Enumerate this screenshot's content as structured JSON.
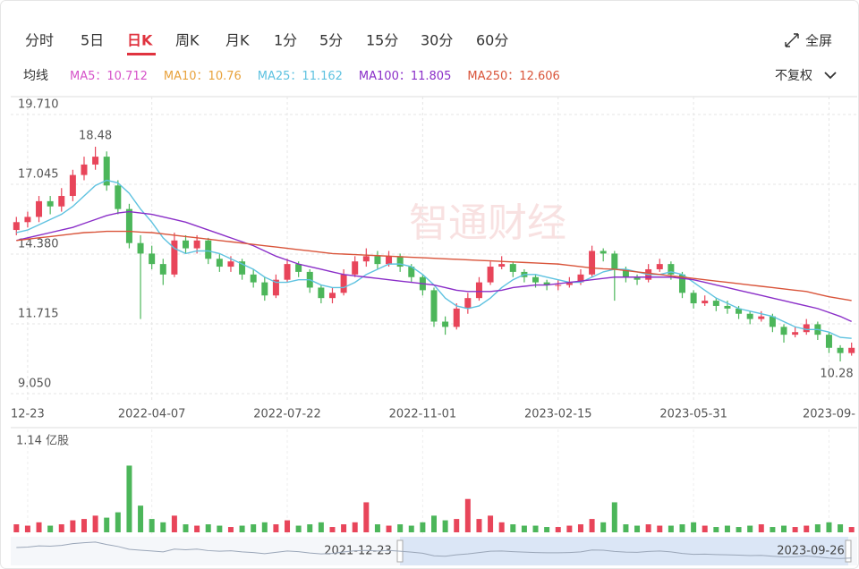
{
  "tabs": [
    "分时",
    "5日",
    "日K",
    "周K",
    "月K",
    "1分",
    "5分",
    "15分",
    "30分",
    "60分"
  ],
  "active_tab": "日K",
  "fullscreen": "全屏",
  "ma_label": "均线",
  "adjust": "不复权",
  "watermark": "智通财经",
  "chart_data": {
    "type": "candlestick",
    "up_color": "#e8455a",
    "down_color": "#4cb65a",
    "legend": [
      {
        "name": "MA5：",
        "value": 10.712,
        "color": "#d653c9"
      },
      {
        "name": "MA10：",
        "value": 10.76,
        "color": "#e8a23c"
      },
      {
        "name": "MA25：",
        "value": 11.162,
        "color": "#5ec2e0"
      },
      {
        "name": "MA100：",
        "value": 11.805,
        "color": "#8a2ec8"
      },
      {
        "name": "MA250：",
        "value": 12.606,
        "color": "#d9543a"
      }
    ],
    "ylim": [
      9.05,
      19.71
    ],
    "yticks": [
      {
        "value": 9.05,
        "label": "9.050"
      },
      11.715,
      {
        "value": 14.38,
        "label": "14.380"
      },
      17.045,
      {
        "value": 19.71,
        "label": "19.710"
      }
    ],
    "categories": [
      null,
      "12-23",
      null,
      null,
      null,
      null,
      null,
      null,
      null,
      null,
      null,
      null,
      "2022-04-07",
      null,
      null,
      null,
      null,
      null,
      null,
      null,
      null,
      null,
      null,
      null,
      "2022-07-22",
      null,
      null,
      null,
      null,
      null,
      null,
      null,
      null,
      null,
      null,
      null,
      "2022-11-01",
      null,
      null,
      null,
      null,
      null,
      null,
      null,
      null,
      null,
      null,
      null,
      "2023-02-15",
      null,
      null,
      null,
      null,
      null,
      null,
      null,
      null,
      null,
      null,
      null,
      "2023-05-31",
      null,
      null,
      null,
      null,
      null,
      null,
      null,
      null,
      null,
      null,
      null,
      "2023-09-",
      null,
      null
    ],
    "candles": {
      "open": [
        15.3,
        15.6,
        15.8,
        16.4,
        16.2,
        16.6,
        17.4,
        17.8,
        18.1,
        17.0,
        16.1,
        14.8,
        14.4,
        14.0,
        13.6,
        14.9,
        14.6,
        14.9,
        14.2,
        13.9,
        14.1,
        13.6,
        13.3,
        12.8,
        13.4,
        14.0,
        13.7,
        13.1,
        12.7,
        12.9,
        13.6,
        14.1,
        14.3,
        14.0,
        14.3,
        13.9,
        13.5,
        13.0,
        11.8,
        11.6,
        12.3,
        12.7,
        13.3,
        13.9,
        14.0,
        13.7,
        13.5,
        13.3,
        13.2,
        13.2,
        13.3,
        13.6,
        14.5,
        14.4,
        13.8,
        13.5,
        13.4,
        13.8,
        14.0,
        13.6,
        12.9,
        12.5,
        12.6,
        12.4,
        12.3,
        12.1,
        11.9,
        12.0,
        11.6,
        11.3,
        11.4,
        11.7,
        11.3,
        10.8,
        10.6
      ],
      "high": [
        15.8,
        16.0,
        16.6,
        16.6,
        16.9,
        17.6,
        18.1,
        18.48,
        18.3,
        17.2,
        16.3,
        15.1,
        14.7,
        14.2,
        15.2,
        15.1,
        15.1,
        15.0,
        14.4,
        14.3,
        14.2,
        13.8,
        13.5,
        13.6,
        14.2,
        14.1,
        13.8,
        13.2,
        13.1,
        13.8,
        14.3,
        14.6,
        14.5,
        14.5,
        14.4,
        14.0,
        13.6,
        13.1,
        12.0,
        12.5,
        12.9,
        13.5,
        14.1,
        14.3,
        14.1,
        13.8,
        13.6,
        13.4,
        13.4,
        13.5,
        13.8,
        14.7,
        14.6,
        14.5,
        13.9,
        13.6,
        14.0,
        14.2,
        14.1,
        13.7,
        13.0,
        12.8,
        12.7,
        12.6,
        12.4,
        12.2,
        12.2,
        12.1,
        11.7,
        11.6,
        11.9,
        11.8,
        11.4,
        10.9,
        11.0
      ],
      "low": [
        15.1,
        15.4,
        15.6,
        15.9,
        16.0,
        16.4,
        17.2,
        17.6,
        16.8,
        15.9,
        14.6,
        11.9,
        13.8,
        13.2,
        13.5,
        14.4,
        14.4,
        14.0,
        13.7,
        13.7,
        13.4,
        13.1,
        12.6,
        12.7,
        13.3,
        13.5,
        12.9,
        12.5,
        12.5,
        12.8,
        13.5,
        13.9,
        13.8,
        13.9,
        13.7,
        13.3,
        12.8,
        11.6,
        11.3,
        11.5,
        12.1,
        12.6,
        13.2,
        13.8,
        13.5,
        13.3,
        13.1,
        13.0,
        13.0,
        13.1,
        13.2,
        13.5,
        14.1,
        12.6,
        13.3,
        13.2,
        13.3,
        13.7,
        13.4,
        12.7,
        12.3,
        12.4,
        12.2,
        12.1,
        11.9,
        11.7,
        11.8,
        11.4,
        11.0,
        11.2,
        11.3,
        11.1,
        10.6,
        10.28,
        10.5
      ],
      "close": [
        15.6,
        15.8,
        16.4,
        16.2,
        16.6,
        17.4,
        17.8,
        18.1,
        17.0,
        16.1,
        14.8,
        14.4,
        14.0,
        13.6,
        14.9,
        14.6,
        14.9,
        14.2,
        13.9,
        14.1,
        13.6,
        13.3,
        12.8,
        13.4,
        14.0,
        13.7,
        13.1,
        12.7,
        12.9,
        13.6,
        14.1,
        14.3,
        14.0,
        14.3,
        13.9,
        13.5,
        13.0,
        11.8,
        11.6,
        12.3,
        12.7,
        13.3,
        13.9,
        14.0,
        13.7,
        13.5,
        13.3,
        13.2,
        13.2,
        13.3,
        13.6,
        14.5,
        14.4,
        13.8,
        13.5,
        13.4,
        13.8,
        14.0,
        13.6,
        12.9,
        12.5,
        12.6,
        12.4,
        12.3,
        12.1,
        11.9,
        12.0,
        11.6,
        11.3,
        11.4,
        11.7,
        11.3,
        10.8,
        10.6,
        10.8
      ]
    },
    "ma_lines": [
      {
        "name": "MA25",
        "color": "#5ec2e0",
        "values": [
          15.2,
          15.3,
          15.5,
          15.7,
          15.9,
          16.2,
          16.6,
          17.0,
          17.2,
          17.1,
          16.7,
          16.1,
          15.6,
          15.0,
          14.6,
          14.4,
          14.5,
          14.5,
          14.4,
          14.2,
          14.0,
          13.8,
          13.5,
          13.3,
          13.3,
          13.4,
          13.4,
          13.2,
          13.1,
          13.1,
          13.3,
          13.6,
          13.8,
          14.0,
          14.0,
          13.9,
          13.6,
          13.2,
          12.7,
          12.4,
          12.3,
          12.4,
          12.7,
          13.1,
          13.4,
          13.6,
          13.6,
          13.5,
          13.4,
          13.3,
          13.3,
          13.5,
          13.7,
          13.8,
          13.8,
          13.7,
          13.6,
          13.6,
          13.7,
          13.6,
          13.3,
          13.0,
          12.7,
          12.5,
          12.3,
          12.2,
          12.1,
          12.0,
          11.8,
          11.6,
          11.5,
          11.5,
          11.4,
          11.2,
          11.162
        ]
      },
      {
        "name": "MA100",
        "color": "#8a2ec8",
        "values": [
          14.9,
          15.0,
          15.1,
          15.2,
          15.3,
          15.4,
          15.55,
          15.7,
          15.85,
          15.95,
          16.0,
          15.95,
          15.9,
          15.8,
          15.7,
          15.6,
          15.45,
          15.3,
          15.15,
          15.0,
          14.85,
          14.7,
          14.5,
          14.3,
          14.15,
          14.0,
          13.9,
          13.8,
          13.7,
          13.6,
          13.55,
          13.5,
          13.45,
          13.4,
          13.35,
          13.3,
          13.25,
          13.2,
          13.1,
          13.0,
          12.95,
          12.95,
          12.95,
          13.0,
          13.1,
          13.15,
          13.2,
          13.2,
          13.25,
          13.3,
          13.35,
          13.4,
          13.45,
          13.5,
          13.5,
          13.5,
          13.5,
          13.5,
          13.5,
          13.45,
          13.4,
          13.3,
          13.2,
          13.1,
          13.0,
          12.9,
          12.8,
          12.7,
          12.6,
          12.5,
          12.4,
          12.3,
          12.15,
          12.0,
          11.805
        ]
      },
      {
        "name": "MA250",
        "color": "#d9543a",
        "values": [
          14.9,
          14.95,
          15.0,
          15.05,
          15.1,
          15.15,
          15.2,
          15.22,
          15.25,
          15.25,
          15.25,
          15.22,
          15.2,
          15.15,
          15.1,
          15.05,
          15.0,
          14.95,
          14.9,
          14.85,
          14.8,
          14.75,
          14.7,
          14.65,
          14.6,
          14.55,
          14.5,
          14.45,
          14.4,
          14.38,
          14.36,
          14.34,
          14.32,
          14.3,
          14.28,
          14.26,
          14.24,
          14.22,
          14.2,
          14.18,
          14.16,
          14.14,
          14.12,
          14.1,
          14.08,
          14.06,
          14.04,
          14.02,
          14.0,
          13.95,
          13.9,
          13.85,
          13.82,
          13.8,
          13.75,
          13.7,
          13.65,
          13.6,
          13.55,
          13.5,
          13.45,
          13.4,
          13.35,
          13.3,
          13.25,
          13.2,
          13.15,
          13.1,
          13.05,
          13.0,
          12.95,
          12.85,
          12.75,
          12.68,
          12.606
        ]
      }
    ],
    "volume_axis": {
      "value": 1.14,
      "label": "1.14 亿股"
    },
    "volume": [
      0.12,
      0.1,
      0.15,
      0.1,
      0.12,
      0.18,
      0.2,
      0.25,
      0.22,
      0.3,
      1.0,
      0.4,
      0.2,
      0.15,
      0.25,
      0.12,
      0.1,
      0.12,
      0.1,
      0.08,
      0.1,
      0.12,
      0.15,
      0.12,
      0.18,
      0.1,
      0.12,
      0.15,
      0.08,
      0.12,
      0.15,
      0.45,
      0.12,
      0.1,
      0.12,
      0.1,
      0.15,
      0.25,
      0.18,
      0.2,
      0.5,
      0.2,
      0.25,
      0.15,
      0.12,
      0.1,
      0.1,
      0.08,
      0.08,
      0.1,
      0.12,
      0.2,
      0.15,
      0.45,
      0.12,
      0.1,
      0.12,
      0.1,
      0.1,
      0.12,
      0.15,
      0.1,
      0.08,
      0.1,
      0.08,
      0.1,
      0.12,
      0.08,
      0.1,
      0.08,
      0.1,
      0.12,
      0.15,
      0.12,
      0.08
    ]
  },
  "navigator": {
    "start": "2021-12-23",
    "end": "2023-09-26"
  }
}
